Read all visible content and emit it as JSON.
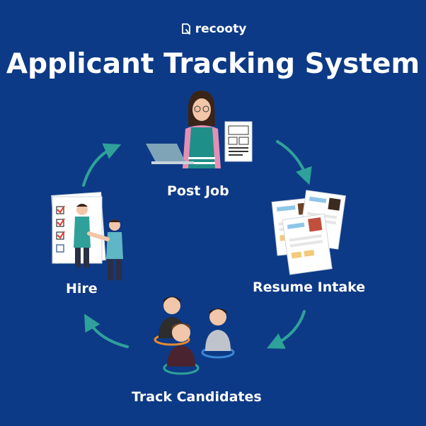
{
  "brand": {
    "name": "recooty",
    "icon": "recooty-logo-icon"
  },
  "title": "Applicant Tracking System",
  "steps": [
    {
      "label": "Post Job",
      "icon": "recruiter-with-laptop-icon"
    },
    {
      "label": "Resume Intake",
      "icon": "resume-stack-icon"
    },
    {
      "label": "Track Candidates",
      "icon": "candidate-group-icon"
    },
    {
      "label": "Hire",
      "icon": "handshake-hire-icon"
    }
  ],
  "colors": {
    "background": "#0d3a86",
    "arrow": "#2fa19a",
    "text": "#ffffff"
  }
}
